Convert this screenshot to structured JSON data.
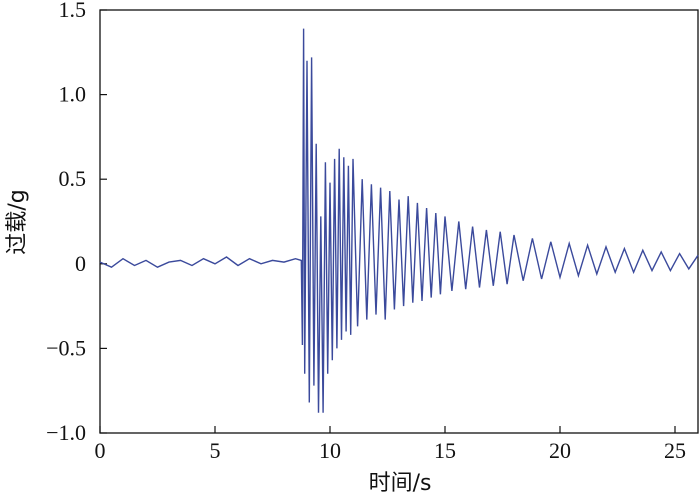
{
  "chart_data": {
    "type": "line",
    "title": "",
    "xlabel": "时间/s",
    "ylabel": "过载/g",
    "xlim": [
      0,
      26
    ],
    "ylim": [
      -1.0,
      1.5
    ],
    "x_ticks": [
      0,
      5,
      10,
      15,
      20,
      25
    ],
    "x_tick_labels": [
      "0",
      "5",
      "10",
      "15",
      "20",
      "25"
    ],
    "y_ticks": [
      -1.0,
      -0.5,
      0,
      0.5,
      1.0,
      1.5
    ],
    "y_tick_labels": [
      "−1.0",
      "−0.5",
      "0",
      "0.5",
      "1.0",
      "1.5"
    ],
    "grid": false,
    "line_color": "#3b4a9c",
    "series": [
      {
        "x": [
          0,
          0.5,
          1,
          1.5,
          2,
          2.5,
          3,
          3.5,
          4,
          4.5,
          5,
          5.5,
          6,
          6.5,
          7,
          7.5,
          8,
          8.5,
          8.75,
          8.8,
          8.85,
          8.9,
          9.0,
          9.1,
          9.2,
          9.3,
          9.4,
          9.5,
          9.6,
          9.7,
          9.8,
          9.9,
          10.0,
          10.1,
          10.2,
          10.3,
          10.4,
          10.5,
          10.6,
          10.7,
          10.8,
          10.9,
          11.0,
          11.2,
          11.4,
          11.6,
          11.8,
          12.0,
          12.2,
          12.4,
          12.6,
          12.8,
          13.0,
          13.2,
          13.4,
          13.6,
          13.8,
          14.0,
          14.2,
          14.4,
          14.6,
          14.8,
          15.0,
          15.3,
          15.6,
          15.9,
          16.2,
          16.5,
          16.8,
          17.1,
          17.4,
          17.7,
          18.0,
          18.4,
          18.8,
          19.2,
          19.6,
          20.0,
          20.4,
          20.8,
          21.2,
          21.6,
          22.0,
          22.4,
          22.8,
          23.2,
          23.6,
          24.0,
          24.4,
          24.8,
          25.2,
          25.6,
          26.0
        ],
        "y": [
          0.01,
          -0.02,
          0.03,
          -0.01,
          0.02,
          -0.02,
          0.01,
          0.02,
          -0.01,
          0.03,
          0.0,
          0.04,
          -0.01,
          0.03,
          0.0,
          0.02,
          0.01,
          0.03,
          0.02,
          -0.48,
          1.39,
          -0.65,
          1.2,
          -0.82,
          1.22,
          -0.72,
          0.71,
          -0.88,
          0.28,
          -0.88,
          0.6,
          -0.65,
          0.48,
          -0.57,
          0.62,
          -0.5,
          0.68,
          -0.45,
          0.63,
          -0.4,
          0.58,
          -0.42,
          0.62,
          -0.37,
          0.5,
          -0.33,
          0.47,
          -0.3,
          0.45,
          -0.33,
          0.43,
          -0.27,
          0.38,
          -0.25,
          0.4,
          -0.23,
          0.36,
          -0.22,
          0.33,
          -0.2,
          0.3,
          -0.18,
          0.28,
          -0.16,
          0.25,
          -0.15,
          0.22,
          -0.14,
          0.2,
          -0.13,
          0.19,
          -0.12,
          0.17,
          -0.1,
          0.15,
          -0.09,
          0.13,
          -0.08,
          0.12,
          -0.07,
          0.11,
          -0.06,
          0.1,
          -0.05,
          0.09,
          -0.05,
          0.08,
          -0.04,
          0.07,
          -0.04,
          0.06,
          -0.03,
          0.05
        ]
      }
    ]
  }
}
